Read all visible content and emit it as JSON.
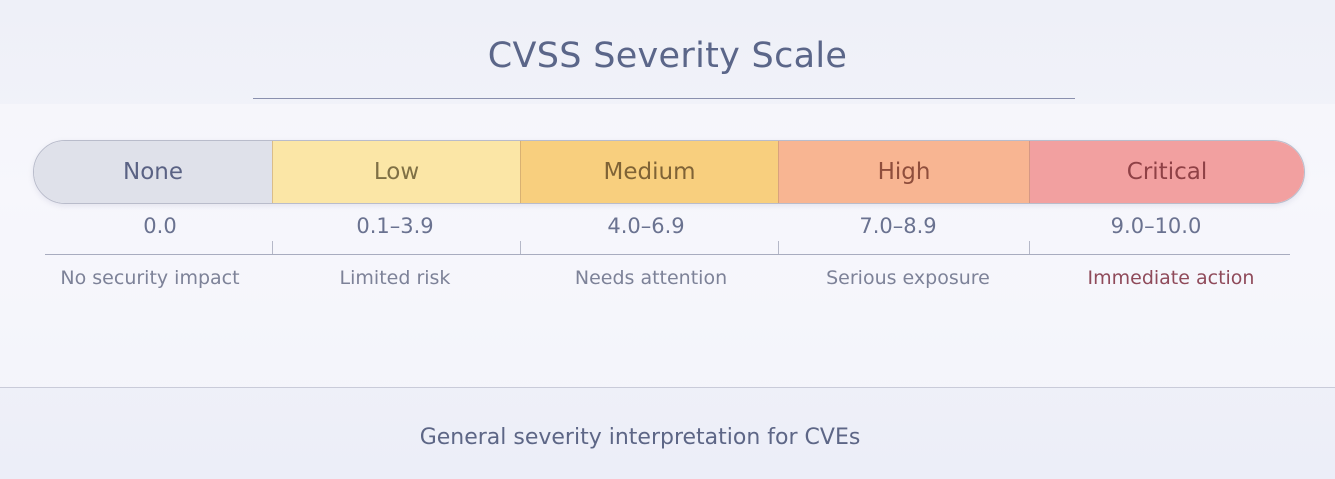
{
  "title": "CVSS Severity Scale",
  "footer": "General severity interpretation for CVEs",
  "levels": [
    {
      "name": "None",
      "range": "0.0",
      "description": "No security impact",
      "color": "#dfe1ea",
      "text_color": "#5a6284",
      "desc_color": "#7d8298"
    },
    {
      "name": "Low",
      "range": "0.1–3.9",
      "description": "Limited risk",
      "color": "#fbe6a6",
      "text_color": "#7f7045",
      "desc_color": "#7d8298"
    },
    {
      "name": "Medium",
      "range": "4.0–6.9",
      "description": "Needs attention",
      "color": "#f8cf7e",
      "text_color": "#7f6336",
      "desc_color": "#7d8298"
    },
    {
      "name": "High",
      "range": "7.0–8.9",
      "description": "Serious exposure",
      "color": "#f8b592",
      "text_color": "#8f4e3c",
      "desc_color": "#7d8298"
    },
    {
      "name": "Critical",
      "range": "9.0–10.0",
      "description": "Immediate action",
      "color": "#f2a0a0",
      "text_color": "#8f4146",
      "desc_color": "#8f4a5a"
    }
  ]
}
